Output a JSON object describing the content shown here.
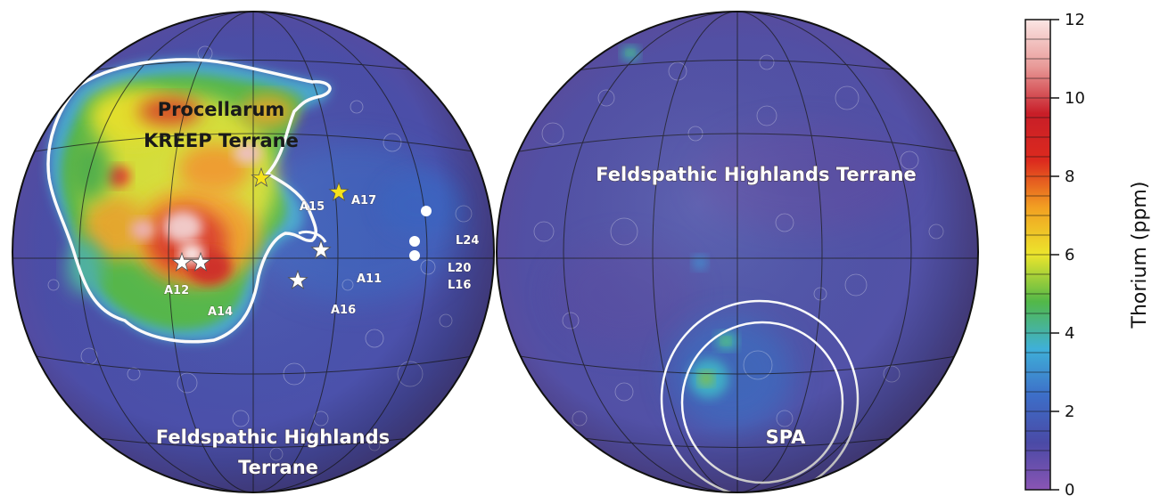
{
  "near_side": {
    "labels": {
      "pkt_line1": "Procellarum",
      "pkt_line2": "KREEP Terrane",
      "fht_line1": "Feldspathic Highlands",
      "fht_line2": "Terrane"
    },
    "sites": {
      "a11": "A11",
      "a12": "A12",
      "a14": "A14",
      "a15": "A15",
      "a16": "A16",
      "a17": "A17",
      "l16": "L16",
      "l20": "L20",
      "l24": "L24"
    }
  },
  "far_side": {
    "labels": {
      "fht": "Feldspathic Highlands Terrane",
      "spa": "SPA"
    }
  },
  "colorbar": {
    "title": "Thorium (ppm)",
    "ticks": [
      "0",
      "2",
      "4",
      "6",
      "8",
      "10",
      "12"
    ],
    "min": 0,
    "max": 12,
    "stops": [
      "#8a55b4",
      "#4a4aa6",
      "#3d6ec8",
      "#3fb0d8",
      "#52b848",
      "#ece52c",
      "#f2a022",
      "#dc2a1e",
      "#c81e28",
      "#e89a98",
      "#fbe6e4"
    ]
  },
  "colors": {
    "background_low": "#4b52a8",
    "terrane_boundary": "#ffffff",
    "star_white": "#ffffff",
    "star_yellow": "#f5e21a"
  }
}
